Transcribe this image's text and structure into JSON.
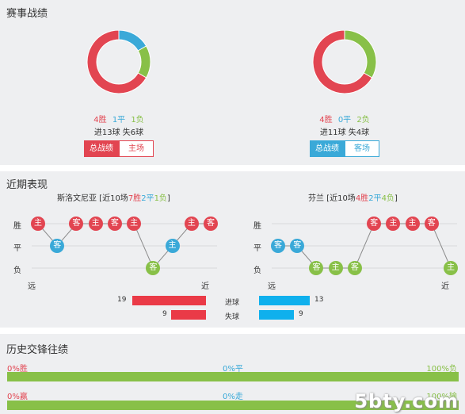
{
  "section1": {
    "title": "赛事战绩",
    "left": {
      "record": {
        "win": "4胜",
        "draw": "1平",
        "loss": "1负"
      },
      "goals": {
        "for": "进13球",
        "against": "失6球"
      },
      "donut": {
        "win": 4,
        "draw": 1,
        "loss": 1
      },
      "tabs": [
        "总战绩",
        "主场"
      ],
      "active_tab": 0
    },
    "right": {
      "record": {
        "win": "4胜",
        "draw": "0平",
        "loss": "2负"
      },
      "goals": {
        "for": "进11球",
        "against": "失4球"
      },
      "donut": {
        "win": 4,
        "draw": 0,
        "loss": 2
      },
      "tabs": [
        "总战绩",
        "客场"
      ],
      "active_tab": 0
    }
  },
  "section2": {
    "title": "近期表现",
    "left": {
      "team": "斯洛文尼亚",
      "summary_prefix": " [近10场",
      "wins": "7胜",
      "draws": "2平",
      "losses": "1负",
      "summary_suffix": "]",
      "rows": [
        "胜",
        "平",
        "负"
      ],
      "matches": [
        {
          "venue": "主",
          "result": "W"
        },
        {
          "venue": "客",
          "result": "D"
        },
        {
          "venue": "客",
          "result": "W"
        },
        {
          "venue": "主",
          "result": "W"
        },
        {
          "venue": "客",
          "result": "W"
        },
        {
          "venue": "主",
          "result": "W"
        },
        {
          "venue": "客",
          "result": "L"
        },
        {
          "venue": "主",
          "result": "D"
        },
        {
          "venue": "主",
          "result": "W"
        },
        {
          "venue": "客",
          "result": "W"
        }
      ],
      "far": "远",
      "near": "近"
    },
    "right": {
      "team": "芬兰",
      "summary_prefix": " [近10场",
      "wins": "4胜",
      "draws": "2平",
      "losses": "4负",
      "summary_suffix": "]",
      "rows": [
        "胜",
        "平",
        "负"
      ],
      "matches": [
        {
          "venue": "客",
          "result": "D"
        },
        {
          "venue": "客",
          "result": "D"
        },
        {
          "venue": "客",
          "result": "L"
        },
        {
          "venue": "主",
          "result": "L"
        },
        {
          "venue": "客",
          "result": "L"
        },
        {
          "venue": "客",
          "result": "W"
        },
        {
          "venue": "主",
          "result": "W"
        },
        {
          "venue": "主",
          "result": "W"
        },
        {
          "venue": "客",
          "result": "W"
        },
        {
          "venue": "主",
          "result": "L"
        }
      ],
      "far": "远",
      "near": "近"
    },
    "goals_compare": {
      "scored_label": "进球",
      "conceded_label": "失球",
      "left_scored": "19",
      "left_conceded": "9",
      "right_scored": "13",
      "right_conceded": "9",
      "max_value": 19
    }
  },
  "section3": {
    "title": "历史交锋往绩",
    "row1": {
      "left": "0%胜",
      "mid": "0%平",
      "right": "100%负",
      "left_pct": 0,
      "mid_pct": 0,
      "right_pct": 100
    },
    "row2": {
      "left": "0%赢",
      "mid": "0%走",
      "right": "100%输",
      "left_pct": 0,
      "mid_pct": 0,
      "right_pct": 100
    }
  },
  "watermark": "5bty.com",
  "colors": {
    "win": "#e24551",
    "draw": "#3aa9d8",
    "loss": "#88c048",
    "left_bar": "#ea3a47",
    "right_bar": "#0fb0ed",
    "panel_bg": "#eeeff1"
  }
}
